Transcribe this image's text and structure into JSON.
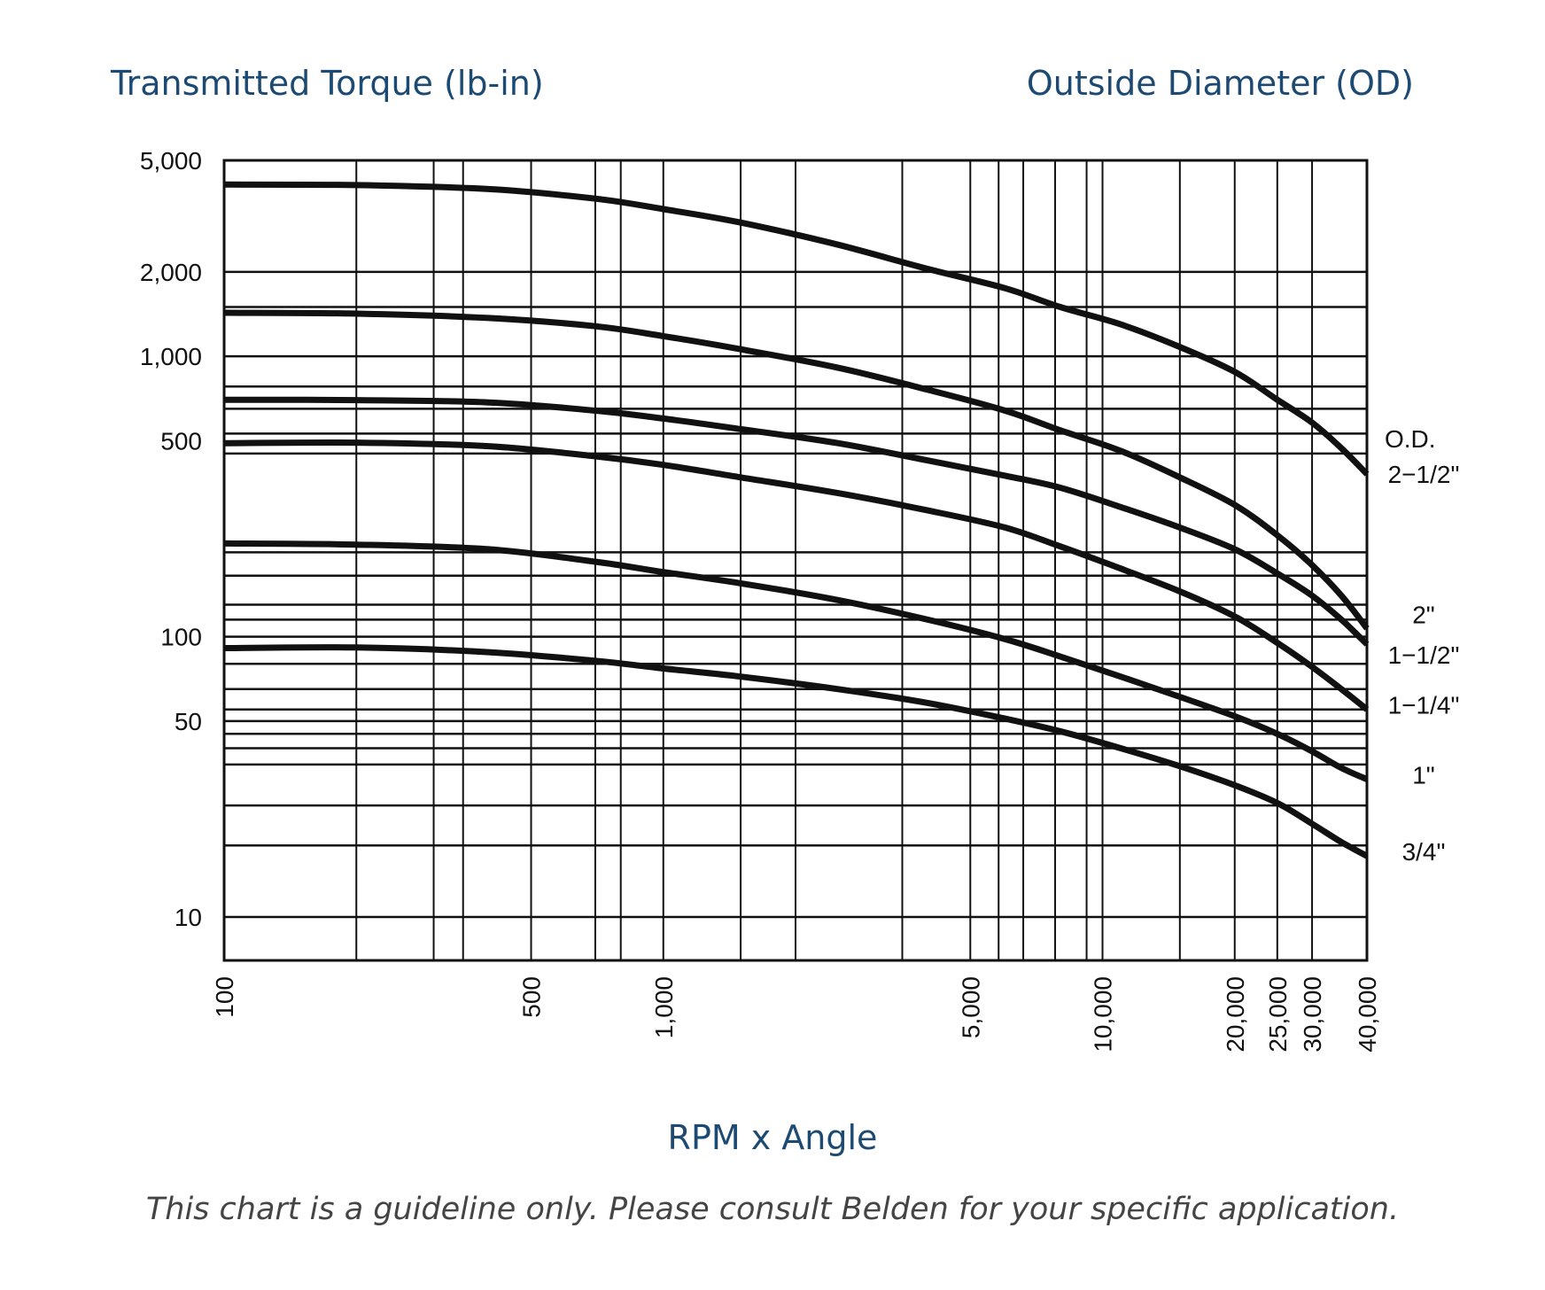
{
  "header": {
    "y_title": "Transmitted Torque (lb-in)",
    "legend_title": "Outside Diameter (OD)",
    "x_title": "RPM x Angle",
    "footnote": "This chart is a guideline only. Please consult Belden for your specific application."
  },
  "chart_data": {
    "type": "line",
    "x_scale": "log",
    "y_scale": "log",
    "xlim": [
      100,
      40000
    ],
    "ylim": [
      7,
      5000
    ],
    "xlabel": "RPM x Angle",
    "ylabel": "Transmitted Torque (lb-in)",
    "x_ticks": [
      {
        "value": 100,
        "label": "100"
      },
      {
        "value": 500,
        "label": "500"
      },
      {
        "value": 1000,
        "label": "1,000"
      },
      {
        "value": 5000,
        "label": "5,000"
      },
      {
        "value": 10000,
        "label": "10,000"
      },
      {
        "value": 20000,
        "label": "20,000"
      },
      {
        "value": 25000,
        "label": "25,000"
      },
      {
        "value": 30000,
        "label": "30,000"
      },
      {
        "value": 40000,
        "label": "40,000"
      }
    ],
    "y_ticks": [
      {
        "value": 5000,
        "label": "5,000"
      },
      {
        "value": 2000,
        "label": "2,000"
      },
      {
        "value": 1000,
        "label": "1,000"
      },
      {
        "value": 500,
        "label": "500"
      },
      {
        "value": 100,
        "label": "100"
      },
      {
        "value": 50,
        "label": "50"
      },
      {
        "value": 10,
        "label": "10"
      }
    ],
    "x_grid": [
      100,
      200,
      300,
      350,
      500,
      700,
      800,
      1000,
      1500,
      2000,
      3500,
      5000,
      5800,
      6600,
      7800,
      9200,
      10000,
      15000,
      20000,
      25000,
      30000,
      40000
    ],
    "y_grid": [
      7,
      10,
      18,
      25,
      35,
      40,
      45,
      50,
      55,
      65,
      80,
      100,
      115,
      130,
      165,
      200,
      450,
      530,
      650,
      780,
      1000,
      1500,
      2000,
      5000
    ],
    "grid": true,
    "legend_title": "O.D.",
    "series": [
      {
        "name": "2-1/2\"",
        "label": "2−1/2\"",
        "x": [
          100,
          200,
          400,
          700,
          1000,
          1500,
          2500,
          4000,
          6000,
          8000,
          11000,
          15000,
          20000,
          25000,
          30000,
          35000,
          40000
        ],
        "y": [
          4100,
          4080,
          3950,
          3650,
          3350,
          3000,
          2500,
          2050,
          1750,
          1500,
          1300,
          1080,
          880,
          700,
          580,
          470,
          380
        ]
      },
      {
        "name": "2\"",
        "label": "2\"",
        "x": [
          100,
          200,
          400,
          700,
          1000,
          1500,
          2500,
          4000,
          6000,
          8000,
          11000,
          15000,
          20000,
          25000,
          30000,
          35000,
          40000
        ],
        "y": [
          1430,
          1420,
          1370,
          1280,
          1180,
          1060,
          910,
          760,
          640,
          545,
          460,
          370,
          295,
          230,
          180,
          140,
          107
        ]
      },
      {
        "name": "1-1/2\"",
        "label": "1−1/2\"",
        "x": [
          100,
          200,
          400,
          700,
          1000,
          1500,
          2500,
          4000,
          6000,
          8000,
          11000,
          15000,
          20000,
          25000,
          30000,
          35000,
          40000
        ],
        "y": [
          700,
          698,
          685,
          640,
          600,
          550,
          490,
          425,
          375,
          340,
          290,
          245,
          205,
          168,
          140,
          115,
          94
        ]
      },
      {
        "name": "1-1/4\"",
        "label": "1−1/4\"",
        "x": [
          100,
          200,
          400,
          700,
          1000,
          1500,
          2500,
          4000,
          6000,
          8000,
          11000,
          15000,
          20000,
          25000,
          30000,
          35000,
          40000
        ],
        "y": [
          490,
          492,
          478,
          440,
          410,
          370,
          325,
          282,
          245,
          210,
          175,
          145,
          118,
          95,
          78,
          65,
          55
        ]
      },
      {
        "name": "1\"",
        "label": "1\"",
        "x": [
          100,
          200,
          400,
          700,
          1000,
          1500,
          2500,
          4000,
          6000,
          8000,
          11000,
          15000,
          20000,
          25000,
          30000,
          35000,
          40000
        ],
        "y": [
          215,
          213,
          205,
          185,
          170,
          155,
          135,
          115,
          98,
          85,
          72,
          61,
          52,
          45,
          39,
          34,
          31
        ]
      },
      {
        "name": "3/4\"",
        "label": "3/4\"",
        "x": [
          100,
          200,
          400,
          700,
          1000,
          1500,
          2500,
          4000,
          6000,
          8000,
          11000,
          15000,
          20000,
          25000,
          30000,
          35000,
          40000
        ],
        "y": [
          91,
          91.5,
          88,
          82,
          77,
          72,
          65,
          58,
          51,
          46,
          40,
          34.5,
          29.5,
          25.5,
          21.5,
          18.5,
          16.5
        ]
      }
    ]
  }
}
